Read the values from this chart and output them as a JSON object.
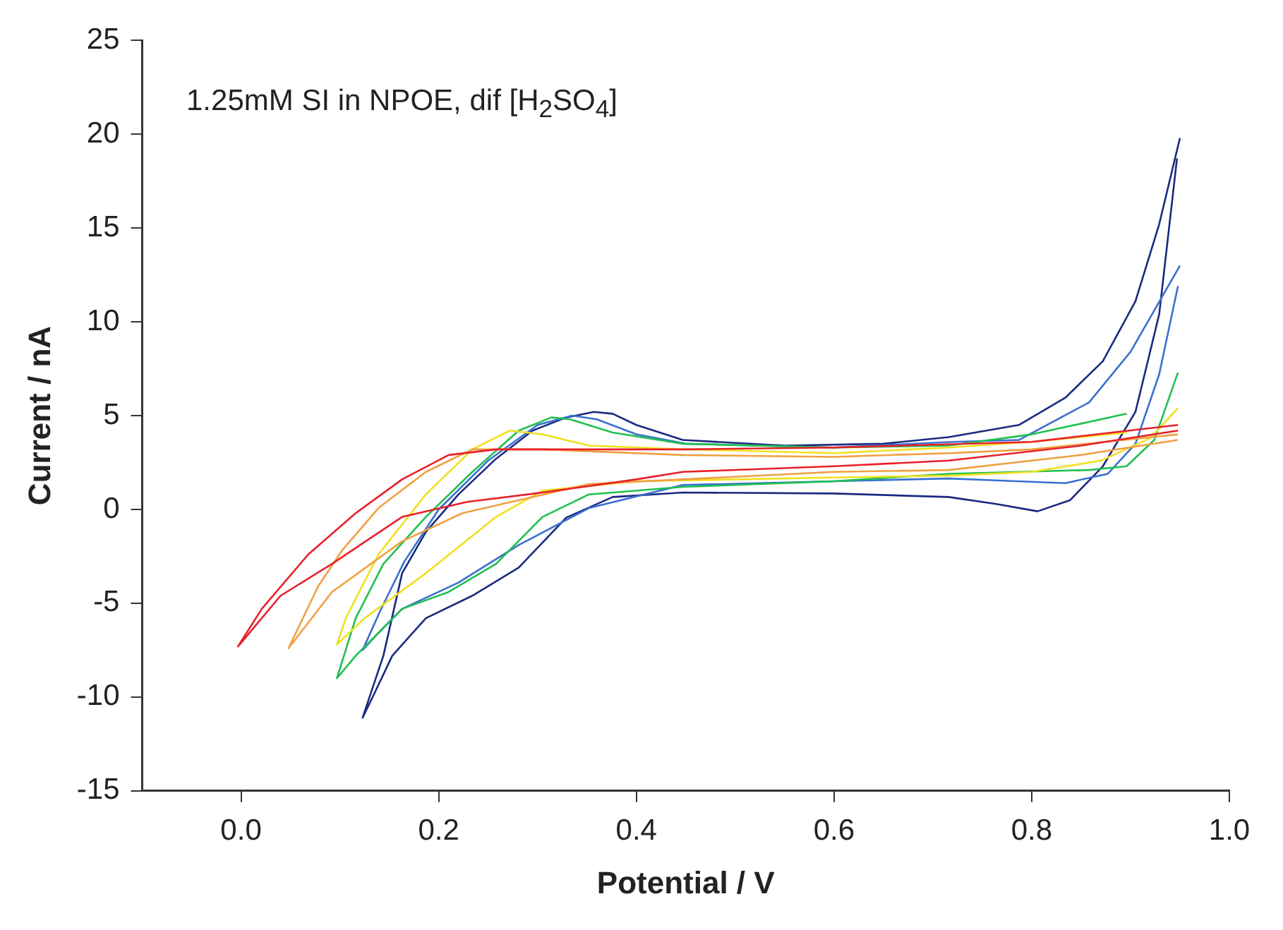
{
  "chart_data": {
    "type": "line",
    "annotations": [
      "1.25mM SI in NPOE, dif [H$_{2}$SO$_{4}$]"
    ],
    "xlabel": "Potential / V",
    "ylabel": "Current / nA",
    "xlim": [
      -0.1,
      1.0
    ],
    "ylim": [
      -15,
      25
    ],
    "xticks": [
      {
        "value": 0,
        "label": "0.0"
      },
      {
        "value": 0.2,
        "label": "0.2"
      },
      {
        "value": 0.4,
        "label": "0.4"
      },
      {
        "value": 0.6,
        "label": "0.6"
      },
      {
        "value": 0.8,
        "label": "0.8"
      },
      {
        "value": 1,
        "label": "1.0"
      }
    ],
    "yticks": [
      -15,
      -10,
      -5,
      0,
      5,
      10,
      15,
      20,
      25
    ],
    "grid": false,
    "legend": false,
    "marker": "none",
    "line_style": "solid",
    "series": [
      {
        "color": "#e8202a",
        "x": [
          0.948,
          0.8,
          0.6,
          0.447,
          0.352,
          0.258,
          0.21,
          0.163,
          0.116,
          0.068,
          0.021,
          -0.003,
          0.04,
          0.092,
          0.163,
          0.229,
          0.305,
          0.4,
          0.447,
          0.6,
          0.716,
          0.85,
          0.948
        ],
        "values": [
          4.5,
          3.6,
          3.3,
          3.2,
          3.2,
          3.2,
          2.9,
          1.6,
          -0.2,
          -2.4,
          -5.3,
          -7.3,
          -4.6,
          -2.9,
          -0.4,
          0.4,
          0.9,
          1.6,
          2.0,
          2.3,
          2.6,
          3.4,
          4.2
        ]
      },
      {
        "color": "#f0a040",
        "x": [
          0.948,
          0.8,
          0.716,
          0.6,
          0.447,
          0.305,
          0.234,
          0.187,
          0.139,
          0.102,
          0.078,
          0.048,
          0.092,
          0.163,
          0.224,
          0.352,
          0.447,
          0.6,
          0.716,
          0.85,
          0.948
        ],
        "values": [
          4.0,
          3.2,
          3.0,
          2.8,
          2.9,
          3.2,
          3.2,
          2.0,
          0.07,
          -2.2,
          -4.1,
          -7.4,
          -4.4,
          -1.7,
          -0.2,
          1.35,
          1.6,
          2.0,
          2.1,
          2.9,
          3.7
        ]
      },
      {
        "color": "#f0e020",
        "x": [
          0.896,
          0.8,
          0.716,
          0.6,
          0.447,
          0.352,
          0.305,
          0.272,
          0.234,
          0.187,
          0.139,
          0.106,
          0.097,
          0.125,
          0.187,
          0.258,
          0.305,
          0.4,
          0.6,
          0.716,
          0.8,
          0.87,
          0.92,
          0.948
        ],
        "values": [
          4.1,
          3.6,
          3.3,
          3.0,
          3.2,
          3.4,
          4.0,
          4.2,
          3.2,
          0.8,
          -2.4,
          -5.8,
          -7.2,
          -5.8,
          -3.4,
          -0.4,
          1.0,
          1.5,
          1.7,
          1.8,
          2.0,
          2.6,
          3.8,
          5.4
        ]
      },
      {
        "color": "#20c050",
        "x": [
          0.896,
          0.8,
          0.716,
          0.6,
          0.447,
          0.376,
          0.333,
          0.314,
          0.281,
          0.234,
          0.187,
          0.144,
          0.116,
          0.097,
          0.116,
          0.163,
          0.21,
          0.258,
          0.305,
          0.352,
          0.447,
          0.6,
          0.716,
          0.858,
          0.896,
          0.924,
          0.948
        ],
        "values": [
          5.1,
          4.0,
          3.4,
          3.3,
          3.5,
          4.1,
          4.8,
          4.9,
          4.2,
          2.0,
          -0.4,
          -2.9,
          -5.8,
          -9.0,
          -7.8,
          -5.3,
          -4.4,
          -2.9,
          -0.4,
          0.8,
          1.2,
          1.5,
          1.9,
          2.1,
          2.3,
          3.7,
          7.3
        ]
      },
      {
        "color": "#3a70d0",
        "x": [
          0.95,
          0.9,
          0.858,
          0.787,
          0.72,
          0.6,
          0.45,
          0.4,
          0.36,
          0.335,
          0.3,
          0.25,
          0.2,
          0.165,
          0.14,
          0.123,
          0.135,
          0.163,
          0.22,
          0.281,
          0.352,
          0.447,
          0.6,
          0.716,
          0.763,
          0.834,
          0.877,
          0.905,
          0.929,
          0.948
        ],
        "values": [
          13.0,
          8.4,
          5.7,
          3.7,
          3.6,
          3.3,
          3.5,
          4.0,
          4.8,
          5.0,
          4.5,
          2.6,
          0,
          -2.8,
          -5.5,
          -7.5,
          -6.8,
          -5.3,
          -3.9,
          -1.9,
          0.07,
          1.3,
          1.5,
          1.65,
          1.55,
          1.4,
          1.9,
          3.5,
          7.2,
          11.9
        ]
      },
      {
        "color": "#1a2a80",
        "x": [
          0.95,
          0.929,
          0.905,
          0.872,
          0.834,
          0.787,
          0.716,
          0.65,
          0.55,
          0.447,
          0.4,
          0.376,
          0.357,
          0.329,
          0.295,
          0.258,
          0.22,
          0.187,
          0.163,
          0.144,
          0.123,
          0.135,
          0.153,
          0.187,
          0.234,
          0.281,
          0.329,
          0.376,
          0.447,
          0.6,
          0.716,
          0.763,
          0.806,
          0.839,
          0.872,
          0.905,
          0.929,
          0.947
        ],
        "values": [
          19.8,
          15.2,
          11.1,
          7.9,
          5.95,
          4.5,
          3.85,
          3.5,
          3.4,
          3.7,
          4.5,
          5.1,
          5.2,
          4.9,
          4.2,
          2.7,
          0.8,
          -1.2,
          -3.4,
          -7.8,
          -11.1,
          -9.8,
          -7.8,
          -5.8,
          -4.6,
          -3.1,
          -0.44,
          0.66,
          0.9,
          0.85,
          0.66,
          0.3,
          -0.1,
          0.5,
          2.3,
          5.2,
          10.4,
          18.7
        ]
      }
    ]
  }
}
